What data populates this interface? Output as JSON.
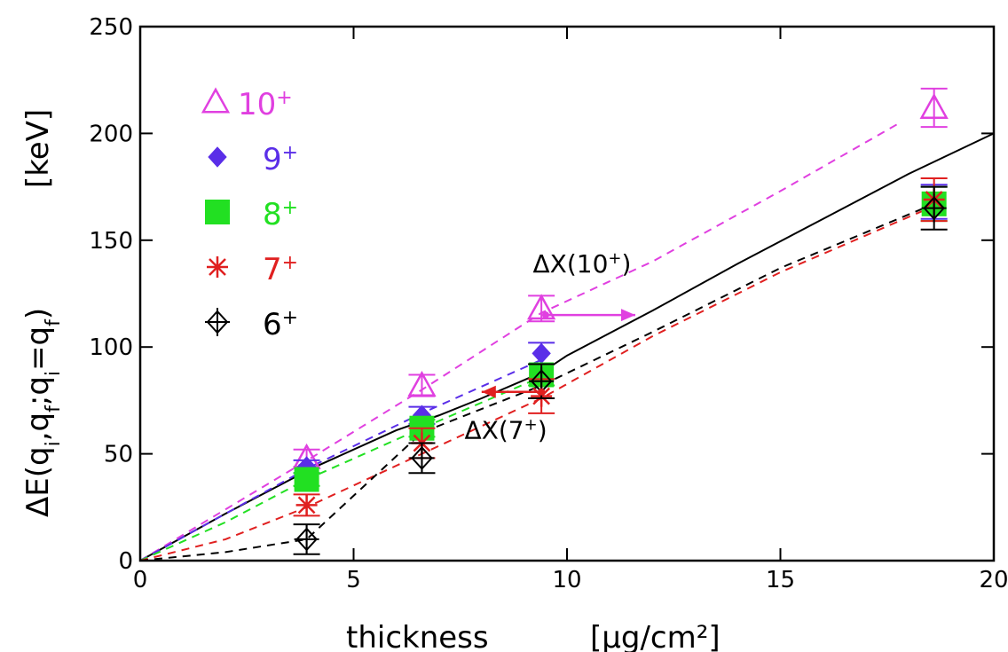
{
  "chart_data": {
    "type": "scatter",
    "xlabel": "thickness",
    "xlabel_unit": "[μg/cm²]",
    "ylabel": "ΔE(q_i,q_f;q_i=q_f)",
    "ylabel_unit": "[keV]",
    "xlim": [
      0,
      20
    ],
    "ylim": [
      0,
      250
    ],
    "x_ticks": [
      "0",
      "5",
      "10",
      "15",
      "20"
    ],
    "y_ticks": [
      "0",
      "50",
      "100",
      "150",
      "200",
      "250"
    ],
    "grid": false,
    "legend_position": "top-left",
    "series": [
      {
        "name": "10+",
        "label_main": "10",
        "label_sup": "+",
        "color": "#e040e0",
        "marker": "triangle",
        "x": [
          3.9,
          6.6,
          9.4,
          18.6
        ],
        "y": [
          48,
          82,
          118,
          212
        ],
        "yerr": [
          4,
          5,
          6,
          9
        ]
      },
      {
        "name": "9+",
        "label_main": "9",
        "label_sup": "+",
        "color": "#5a2ee8",
        "marker": "diamond",
        "x": [
          3.9,
          6.6,
          9.4,
          18.6
        ],
        "y": [
          44,
          68,
          97,
          168
        ],
        "yerr": [
          3,
          4,
          5,
          8
        ]
      },
      {
        "name": "8+",
        "label_main": "8",
        "label_sup": "+",
        "color": "#22e022",
        "marker": "square",
        "x": [
          3.9,
          6.6,
          9.4,
          18.6
        ],
        "y": [
          38,
          62,
          87,
          167
        ],
        "yerr": [
          3,
          4,
          5,
          8
        ]
      },
      {
        "name": "7+",
        "label_main": "7",
        "label_sup": "+",
        "color": "#e02020",
        "marker": "asterisk",
        "x": [
          3.9,
          6.6,
          9.4,
          18.6
        ],
        "y": [
          26,
          55,
          77,
          169
        ],
        "yerr": [
          5,
          7,
          8,
          10
        ]
      },
      {
        "name": "6+",
        "label_main": "6",
        "label_sup": "+",
        "color": "#000000",
        "marker": "crossed-diamond",
        "x": [
          3.9,
          6.6,
          9.4,
          18.6
        ],
        "y": [
          10,
          48,
          84,
          165
        ],
        "yerr": [
          7,
          7,
          8,
          10
        ]
      }
    ],
    "curves": [
      {
        "color": "#000000",
        "dash": "solid",
        "x": [
          0,
          2,
          4,
          6,
          7,
          8,
          9.4,
          10,
          12,
          14,
          16,
          18,
          20
        ],
        "y": [
          0,
          22,
          43,
          61,
          68,
          76,
          88,
          96,
          117,
          139,
          160,
          181,
          200
        ]
      },
      {
        "color": "#e040e0",
        "dash": "dashed",
        "x": [
          0,
          2,
          4,
          6.6,
          9.4,
          12,
          15,
          17.8
        ],
        "y": [
          0,
          24,
          48,
          80,
          116,
          140,
          173,
          205
        ]
      },
      {
        "color": "#5a2ee8",
        "dash": "dashed",
        "x": [
          0,
          2,
          4,
          6.6,
          9.4
        ],
        "y": [
          0,
          22,
          44,
          69,
          94
        ]
      },
      {
        "color": "#22e022",
        "dash": "dashed",
        "x": [
          0,
          2,
          3.9,
          6.6,
          9.4
        ],
        "y": [
          0,
          18,
          38,
          62,
          86
        ]
      },
      {
        "color": "#e02020",
        "dash": "dashed",
        "x": [
          0,
          2,
          3.9,
          6.6,
          9.4,
          12,
          15,
          18.6
        ],
        "y": [
          0,
          10,
          25,
          50,
          76,
          105,
          135,
          166
        ]
      },
      {
        "color": "#000000",
        "dash": "dashed",
        "x": [
          0,
          2,
          3.9,
          6.6,
          9.4,
          12,
          15,
          18.6
        ],
        "y": [
          0,
          4,
          10,
          60,
          82,
          107,
          137,
          167
        ]
      }
    ],
    "annotations": [
      {
        "text_main": "ΔX(10",
        "text_sup": "+",
        "text_end": ")",
        "color": "#e040e0",
        "arrow_from": [
          9.5,
          115
        ],
        "arrow_to": [
          11.6,
          115
        ],
        "label_at": [
          9.2,
          135
        ]
      },
      {
        "text_main": "ΔX(7",
        "text_sup": "+",
        "text_end": ")",
        "color": "#e02020",
        "arrow_from": [
          9.4,
          79
        ],
        "arrow_to": [
          8.0,
          79
        ],
        "label_at": [
          7.6,
          57
        ]
      }
    ]
  }
}
